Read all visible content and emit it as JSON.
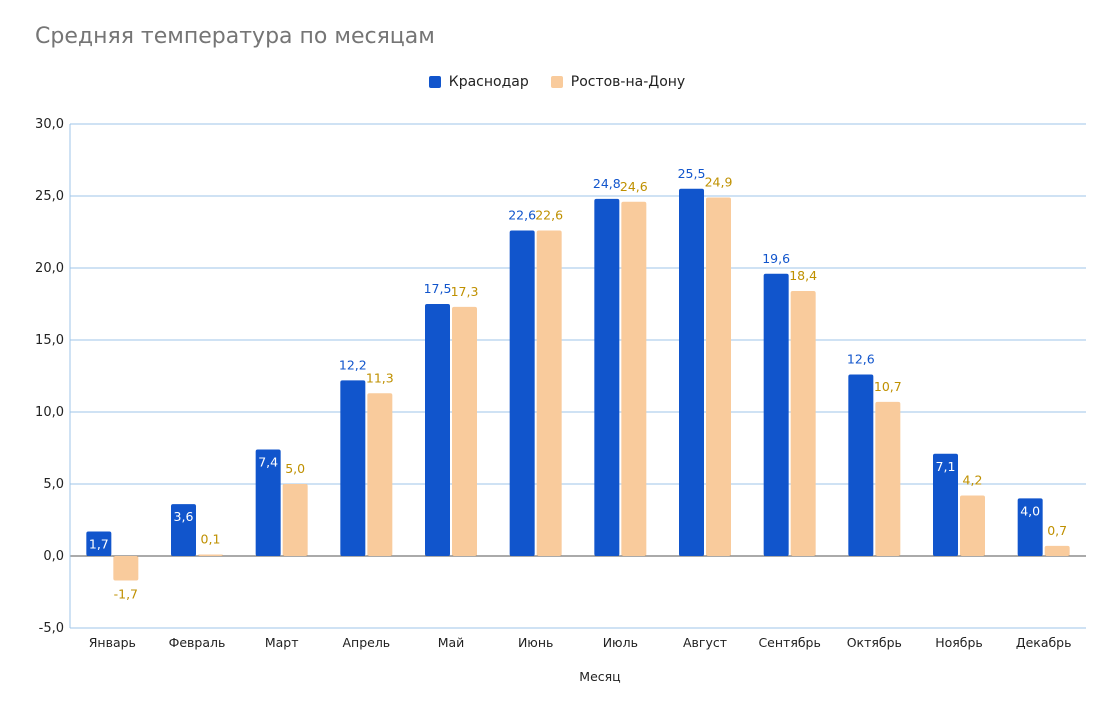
{
  "chart_data": {
    "type": "bar",
    "title": "Средняя температура по месяцам",
    "xlabel": "Месяц",
    "ylabel": "",
    "ylim": [
      -5,
      30
    ],
    "yticks": [
      "-5,0",
      "0,0",
      "5,0",
      "10,0",
      "15,0",
      "20,0",
      "25,0",
      "30,0"
    ],
    "ytick_values": [
      -5,
      0,
      5,
      10,
      15,
      20,
      25,
      30
    ],
    "grid": true,
    "legend_position": "top-center",
    "categories": [
      "Январь",
      "Февраль",
      "Март",
      "Апрель",
      "Май",
      "Июнь",
      "Июль",
      "Август",
      "Сентябрь",
      "Октябрь",
      "Ноябрь",
      "Декабрь"
    ],
    "series": [
      {
        "name": "Краснодар",
        "color": "#1155cc",
        "label_color": "#1155cc",
        "values": [
          1.7,
          3.6,
          7.4,
          12.2,
          17.5,
          22.6,
          24.8,
          25.5,
          19.6,
          12.6,
          7.1,
          4.0
        ],
        "labels": [
          "1,7",
          "3,6",
          "7,4",
          "12,2",
          "17,5",
          "22,6",
          "24,8",
          "25,5",
          "19,6",
          "12,6",
          "7,1",
          "4,0"
        ]
      },
      {
        "name": "Ростов-на-Дону",
        "color": "#f9cb9c",
        "label_color": "#bf9000",
        "values": [
          -1.7,
          0.1,
          5.0,
          11.3,
          17.3,
          22.6,
          24.6,
          24.9,
          18.4,
          10.7,
          4.2,
          0.7
        ],
        "labels": [
          "-1,7",
          "0,1",
          "5,0",
          "11,3",
          "17,3",
          "22,6",
          "24,6",
          "24,9",
          "18,4",
          "10,7",
          "4,2",
          "0,7"
        ]
      }
    ]
  }
}
